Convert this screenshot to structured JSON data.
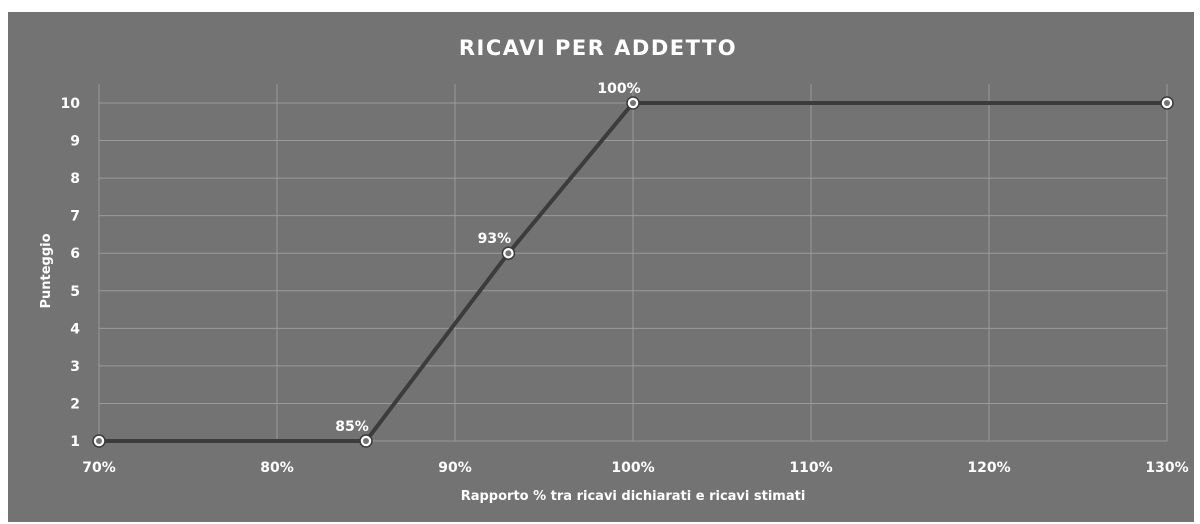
{
  "chart_data": {
    "type": "line",
    "title": "RICAVI PER ADDETTO",
    "xlabel": "Rapporto % tra ricavi dichiarati e ricavi stimati",
    "ylabel": "Punteggio",
    "xlim": [
      70,
      130
    ],
    "ylim": [
      1,
      10
    ],
    "x_ticks": [
      70,
      80,
      90,
      100,
      110,
      120,
      130
    ],
    "x_tick_labels": [
      "70%",
      "80%",
      "90%",
      "100%",
      "110%",
      "120%",
      "130%"
    ],
    "y_ticks": [
      1,
      2,
      3,
      4,
      5,
      6,
      7,
      8,
      9,
      10
    ],
    "y_tick_labels": [
      "1",
      "2",
      "3",
      "4",
      "5",
      "6",
      "7",
      "8",
      "9",
      "10"
    ],
    "grid": true,
    "series": [
      {
        "x": [
          70,
          85,
          93,
          100,
          130
        ],
        "y": [
          1,
          1,
          6,
          10,
          10
        ],
        "point_labels": [
          "",
          "85%",
          "93%",
          "100%",
          ""
        ]
      }
    ],
    "colors": {
      "background": "#737373",
      "line": "#3c3c3c",
      "marker_fill": "#ffffff",
      "grid": "#9a9a9a",
      "text": "#ffffff"
    }
  }
}
